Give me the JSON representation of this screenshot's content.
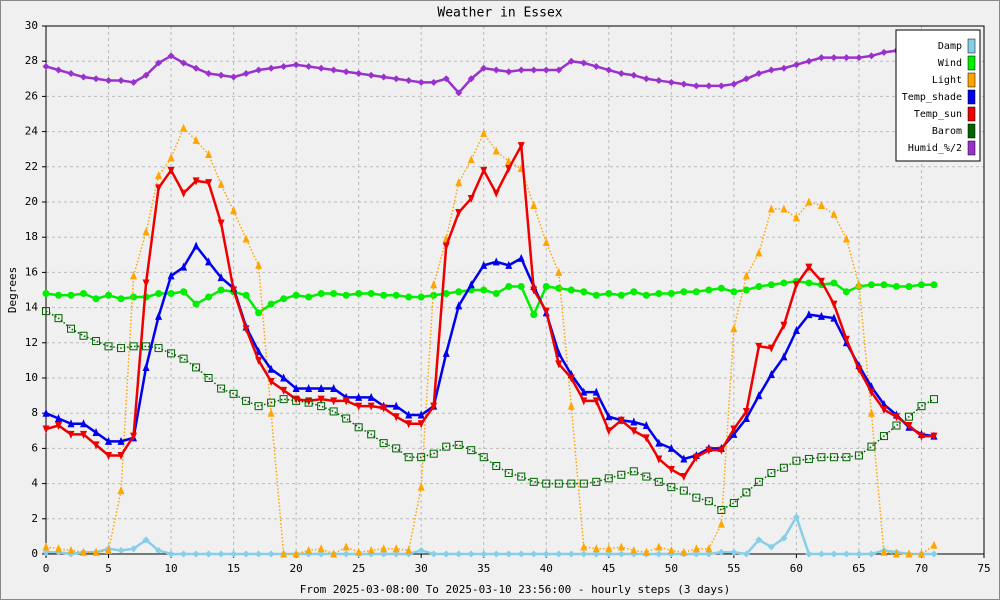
{
  "chart_data": {
    "type": "line",
    "title": "Weather in Essex",
    "xlabel": "From 2025-03-08:00 To 2025-03-10 23:56:00 - hourly steps (3 days)",
    "ylabel": "Degrees",
    "x": [
      0,
      1,
      2,
      3,
      4,
      5,
      6,
      7,
      8,
      9,
      10,
      11,
      12,
      13,
      14,
      15,
      16,
      17,
      18,
      19,
      20,
      21,
      22,
      23,
      24,
      25,
      26,
      27,
      28,
      29,
      30,
      31,
      32,
      33,
      34,
      35,
      36,
      37,
      38,
      39,
      40,
      41,
      42,
      43,
      44,
      45,
      46,
      47,
      48,
      49,
      50,
      51,
      52,
      53,
      54,
      55,
      56,
      57,
      58,
      59,
      60,
      61,
      62,
      63,
      64,
      65,
      66,
      67,
      68,
      69,
      70,
      71
    ],
    "xlim": [
      0,
      75
    ],
    "xticks": [
      0,
      5,
      10,
      15,
      20,
      25,
      30,
      35,
      40,
      45,
      50,
      55,
      60,
      65,
      70,
      75
    ],
    "ylim": [
      0,
      30
    ],
    "yticks": [
      0,
      2,
      4,
      6,
      8,
      10,
      12,
      14,
      16,
      18,
      20,
      22,
      24,
      26,
      28,
      30
    ],
    "grid": true,
    "legend": "top-right",
    "series": [
      {
        "name": "Damp",
        "color": "#87cee8",
        "marker": "diamond",
        "dash": "solid",
        "values": [
          0.1,
          0.1,
          0,
          0.1,
          0.1,
          0.3,
          0.2,
          0.3,
          0.8,
          0.2,
          0,
          0,
          0,
          0,
          0,
          0,
          0,
          0,
          0,
          0,
          0,
          0,
          0,
          0,
          0,
          0,
          0,
          0,
          0,
          0,
          0.2,
          0,
          0,
          0,
          0,
          0,
          0,
          0,
          0,
          0,
          0,
          0,
          0,
          0,
          0,
          0,
          0,
          0,
          0,
          0,
          0,
          0,
          0,
          0,
          0.1,
          0.1,
          0,
          0.8,
          0.4,
          0.9,
          2.1,
          0,
          0,
          0,
          0,
          0,
          0,
          0.2,
          0.1,
          0,
          0,
          0
        ]
      },
      {
        "name": "Wind",
        "color": "#00ee00",
        "marker": "circle",
        "dash": "solid",
        "values": [
          14.8,
          14.7,
          14.7,
          14.8,
          14.5,
          14.7,
          14.5,
          14.6,
          14.6,
          14.8,
          14.8,
          14.9,
          14.2,
          14.6,
          15.0,
          14.9,
          14.7,
          13.7,
          14.2,
          14.5,
          14.7,
          14.6,
          14.8,
          14.8,
          14.7,
          14.8,
          14.8,
          14.7,
          14.7,
          14.6,
          14.6,
          14.7,
          14.8,
          14.9,
          15.0,
          15.0,
          14.8,
          15.2,
          15.2,
          13.6,
          15.2,
          15.1,
          15.0,
          14.9,
          14.7,
          14.8,
          14.7,
          14.9,
          14.7,
          14.8,
          14.8,
          14.9,
          14.9,
          15.0,
          15.1,
          14.9,
          15.0,
          15.2,
          15.3,
          15.4,
          15.5,
          15.4,
          15.3,
          15.4,
          14.9,
          15.2,
          15.3,
          15.3,
          15.2,
          15.2,
          15.3,
          15.3
        ]
      },
      {
        "name": "Light",
        "color": "#ffa500",
        "marker": "triangle-up",
        "dash": "dotted",
        "values": [
          0.4,
          0.3,
          0.2,
          0.1,
          0.1,
          0.2,
          3.6,
          15.8,
          18.3,
          21.5,
          22.5,
          24.2,
          23.5,
          22.7,
          21.0,
          19.5,
          17.9,
          16.4,
          8.0,
          0,
          0,
          0.2,
          0.3,
          0,
          0.4,
          0.1,
          0.2,
          0.3,
          0.3,
          0.2,
          3.8,
          15.3,
          17.9,
          21.1,
          22.4,
          23.9,
          22.9,
          22.3,
          21.9,
          19.8,
          17.7,
          16.0,
          8.4,
          0.4,
          0.3,
          0.3,
          0.4,
          0.2,
          0.1,
          0.4,
          0.2,
          0.1,
          0.3,
          0.3,
          1.7,
          12.8,
          15.8,
          17.1,
          19.6,
          19.6,
          19.1,
          20.0,
          19.8,
          19.3,
          17.9,
          15.3,
          8.0,
          0.1,
          0,
          0,
          0,
          0.5
        ]
      },
      {
        "name": "Temp_shade",
        "color": "#0000ee",
        "marker": "triangle-up",
        "dash": "solid",
        "values": [
          8.0,
          7.7,
          7.4,
          7.4,
          6.9,
          6.4,
          6.4,
          6.6,
          10.6,
          13.5,
          15.8,
          16.3,
          17.5,
          16.6,
          15.7,
          15.1,
          12.9,
          11.5,
          10.5,
          10.0,
          9.4,
          9.4,
          9.4,
          9.4,
          8.9,
          8.9,
          8.9,
          8.4,
          8.4,
          7.9,
          7.9,
          8.4,
          11.4,
          14.1,
          15.3,
          16.4,
          16.6,
          16.4,
          16.8,
          15.2,
          13.7,
          11.4,
          10.2,
          9.2,
          9.2,
          7.8,
          7.6,
          7.5,
          7.3,
          6.3,
          6.0,
          5.4,
          5.6,
          6.0,
          6.0,
          6.8,
          7.7,
          9.0,
          10.2,
          11.2,
          12.7,
          13.6,
          13.5,
          13.4,
          12.0,
          10.7,
          9.5,
          8.5,
          7.9,
          7.2,
          6.8,
          6.7
        ]
      },
      {
        "name": "Temp_sun",
        "color": "#ee0000",
        "marker": "triangle-down",
        "dash": "solid",
        "values": [
          7.1,
          7.3,
          6.8,
          6.8,
          6.2,
          5.6,
          5.6,
          6.7,
          15.4,
          20.8,
          21.8,
          20.5,
          21.2,
          21.1,
          18.8,
          15.0,
          12.8,
          11.0,
          9.8,
          9.3,
          8.8,
          8.7,
          8.8,
          8.7,
          8.7,
          8.4,
          8.4,
          8.3,
          7.8,
          7.4,
          7.4,
          8.4,
          17.5,
          19.4,
          20.2,
          21.8,
          20.5,
          21.9,
          23.2,
          15.0,
          13.8,
          10.8,
          10.0,
          8.7,
          8.7,
          7.0,
          7.6,
          7.0,
          6.6,
          5.4,
          4.8,
          4.4,
          5.5,
          5.9,
          5.9,
          7.1,
          8.1,
          11.8,
          11.7,
          13.0,
          15.3,
          16.3,
          15.5,
          14.2,
          12.2,
          10.5,
          9.2,
          8.2,
          7.8,
          7.3,
          6.7,
          6.7
        ]
      },
      {
        "name": "Barom",
        "color": "#006400",
        "marker": "square",
        "dash": "dotted",
        "values": [
          13.8,
          13.4,
          12.8,
          12.4,
          12.1,
          11.8,
          11.7,
          11.8,
          11.8,
          11.7,
          11.4,
          11.1,
          10.6,
          10.0,
          9.4,
          9.1,
          8.7,
          8.4,
          8.6,
          8.8,
          8.7,
          8.6,
          8.4,
          8.1,
          7.7,
          7.2,
          6.8,
          6.3,
          6.0,
          5.5,
          5.5,
          5.7,
          6.1,
          6.2,
          5.9,
          5.5,
          5.0,
          4.6,
          4.4,
          4.1,
          4.0,
          4.0,
          4.0,
          4.0,
          4.1,
          4.3,
          4.5,
          4.7,
          4.4,
          4.1,
          3.8,
          3.6,
          3.2,
          3.0,
          2.5,
          2.9,
          3.5,
          4.1,
          4.6,
          4.9,
          5.3,
          5.4,
          5.5,
          5.5,
          5.5,
          5.6,
          6.1,
          6.7,
          7.3,
          7.8,
          8.4,
          8.8
        ]
      },
      {
        "name": "Humid_%/2",
        "color": "#9932cc",
        "marker": "diamond",
        "dash": "solid",
        "values": [
          27.7,
          27.5,
          27.3,
          27.1,
          27.0,
          26.9,
          26.9,
          26.8,
          27.2,
          27.9,
          28.3,
          27.9,
          27.6,
          27.3,
          27.2,
          27.1,
          27.3,
          27.5,
          27.6,
          27.7,
          27.8,
          27.7,
          27.6,
          27.5,
          27.4,
          27.3,
          27.2,
          27.1,
          27.0,
          26.9,
          26.8,
          26.8,
          27.0,
          26.2,
          27.0,
          27.6,
          27.5,
          27.4,
          27.5,
          27.5,
          27.5,
          27.5,
          28.0,
          27.9,
          27.7,
          27.5,
          27.3,
          27.2,
          27.0,
          26.9,
          26.8,
          26.7,
          26.6,
          26.6,
          26.6,
          26.7,
          27.0,
          27.3,
          27.5,
          27.6,
          27.8,
          28.0,
          28.2,
          28.2,
          28.2,
          28.2,
          28.3,
          28.5,
          28.6,
          28.7,
          28.7,
          28.7
        ]
      }
    ]
  }
}
